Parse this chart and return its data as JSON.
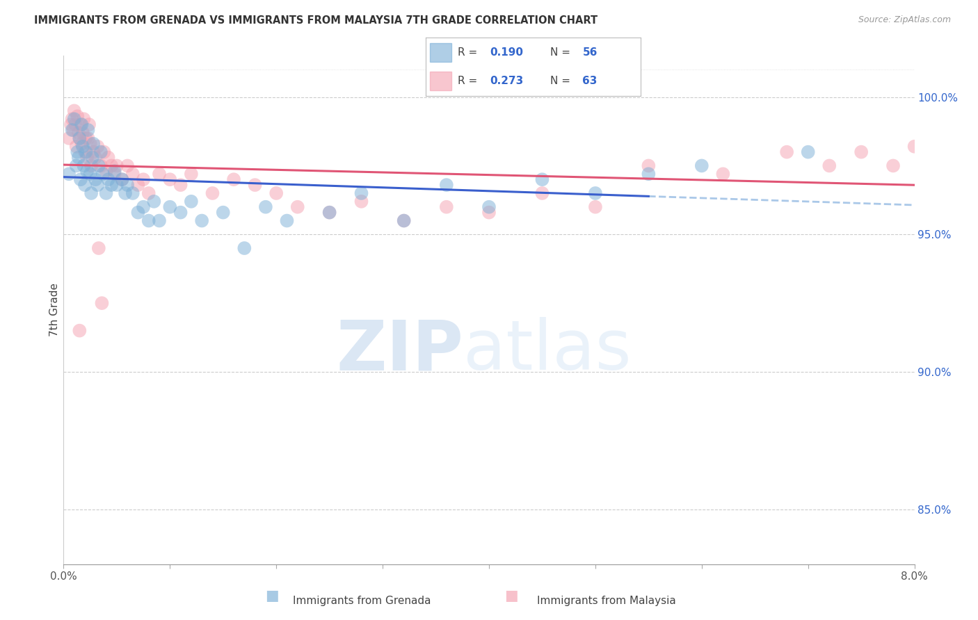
{
  "title": "IMMIGRANTS FROM GRENADA VS IMMIGRANTS FROM MALAYSIA 7TH GRADE CORRELATION CHART",
  "source": "Source: ZipAtlas.com",
  "ylabel": "7th Grade",
  "xmin": 0.0,
  "xmax": 8.0,
  "ymin": 83.0,
  "ymax": 101.5,
  "yticks": [
    85.0,
    90.0,
    95.0,
    100.0
  ],
  "ytick_labels": [
    "85.0%",
    "90.0%",
    "95.0%",
    "100.0%"
  ],
  "blue_color": "#7aaed6",
  "pink_color": "#f4a0b0",
  "blue_line_color": "#3a5fcd",
  "pink_line_color": "#e05575",
  "blue_dash_color": "#aac8e8",
  "watermark_zip": "ZIP",
  "watermark_atlas": "atlas",
  "grenada_x": [
    0.05,
    0.08,
    0.1,
    0.12,
    0.13,
    0.14,
    0.15,
    0.16,
    0.17,
    0.18,
    0.19,
    0.2,
    0.21,
    0.22,
    0.23,
    0.25,
    0.26,
    0.27,
    0.28,
    0.3,
    0.32,
    0.33,
    0.35,
    0.37,
    0.4,
    0.42,
    0.45,
    0.48,
    0.5,
    0.55,
    0.58,
    0.6,
    0.65,
    0.7,
    0.75,
    0.8,
    0.85,
    0.9,
    1.0,
    1.1,
    1.2,
    1.3,
    1.5,
    1.7,
    1.9,
    2.1,
    2.5,
    2.8,
    3.2,
    3.6,
    4.0,
    4.5,
    5.0,
    5.5,
    6.0,
    7.0
  ],
  "grenada_y": [
    97.2,
    98.8,
    99.2,
    97.5,
    98.0,
    97.8,
    98.5,
    97.0,
    99.0,
    98.2,
    97.5,
    96.8,
    98.0,
    97.3,
    98.8,
    97.2,
    96.5,
    97.8,
    98.3,
    97.0,
    96.8,
    97.5,
    98.0,
    97.2,
    96.5,
    97.0,
    96.8,
    97.3,
    96.8,
    97.0,
    96.5,
    96.8,
    96.5,
    95.8,
    96.0,
    95.5,
    96.2,
    95.5,
    96.0,
    95.8,
    96.2,
    95.5,
    95.8,
    94.5,
    96.0,
    95.5,
    95.8,
    96.5,
    95.5,
    96.8,
    96.0,
    97.0,
    96.5,
    97.2,
    97.5,
    98.0
  ],
  "malaysia_x": [
    0.05,
    0.07,
    0.08,
    0.09,
    0.1,
    0.11,
    0.12,
    0.13,
    0.14,
    0.15,
    0.16,
    0.17,
    0.18,
    0.19,
    0.2,
    0.21,
    0.22,
    0.23,
    0.24,
    0.25,
    0.26,
    0.28,
    0.3,
    0.32,
    0.35,
    0.38,
    0.4,
    0.42,
    0.45,
    0.48,
    0.5,
    0.55,
    0.6,
    0.65,
    0.7,
    0.75,
    0.8,
    0.9,
    1.0,
    1.1,
    1.2,
    1.4,
    1.6,
    1.8,
    2.0,
    2.2,
    2.5,
    2.8,
    3.2,
    3.6,
    4.0,
    4.5,
    5.0,
    5.5,
    6.2,
    6.8,
    7.2,
    7.5,
    7.8,
    8.0,
    0.33,
    0.36,
    0.15
  ],
  "malaysia_y": [
    98.5,
    99.0,
    99.2,
    98.8,
    99.5,
    99.0,
    98.2,
    99.3,
    98.7,
    98.5,
    99.0,
    98.3,
    98.7,
    99.2,
    98.0,
    98.5,
    97.8,
    98.5,
    99.0,
    98.3,
    97.5,
    98.0,
    97.8,
    98.2,
    97.5,
    98.0,
    97.3,
    97.8,
    97.5,
    97.2,
    97.5,
    97.0,
    97.5,
    97.2,
    96.8,
    97.0,
    96.5,
    97.2,
    97.0,
    96.8,
    97.2,
    96.5,
    97.0,
    96.8,
    96.5,
    96.0,
    95.8,
    96.2,
    95.5,
    96.0,
    95.8,
    96.5,
    96.0,
    97.5,
    97.2,
    98.0,
    97.5,
    98.0,
    97.5,
    98.2,
    94.5,
    92.5,
    91.5
  ]
}
